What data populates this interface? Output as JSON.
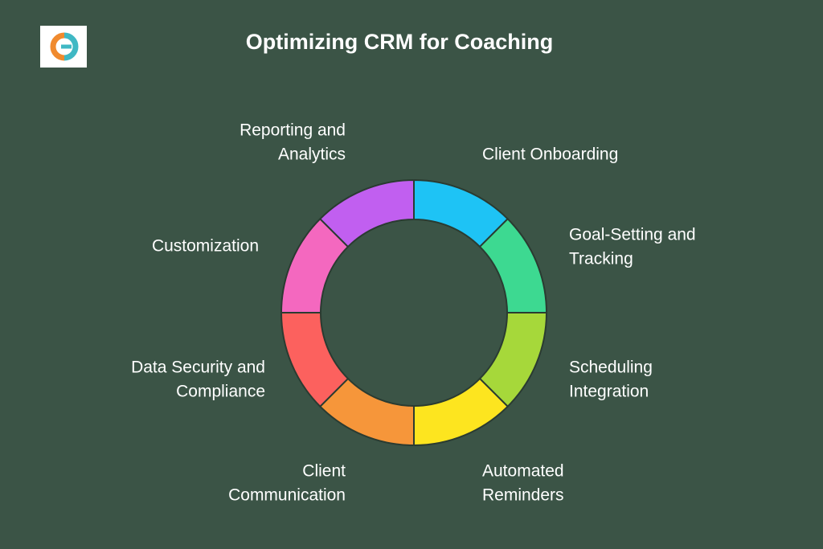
{
  "header": {
    "title": "Optimizing CRM for Coaching"
  },
  "segments": [
    {
      "label": [
        "Client Onboarding"
      ]
    },
    {
      "label": [
        "Goal-Setting and",
        "Tracking"
      ]
    },
    {
      "label": [
        "Scheduling",
        "Integration"
      ]
    },
    {
      "label": [
        "Automated",
        "Reminders"
      ]
    },
    {
      "label": [
        "Client",
        "Communication"
      ]
    },
    {
      "label": [
        "Data Security and",
        "Compliance"
      ]
    },
    {
      "label": [
        "Customization"
      ]
    },
    {
      "label": [
        "Reporting and",
        "Analytics"
      ]
    }
  ]
}
